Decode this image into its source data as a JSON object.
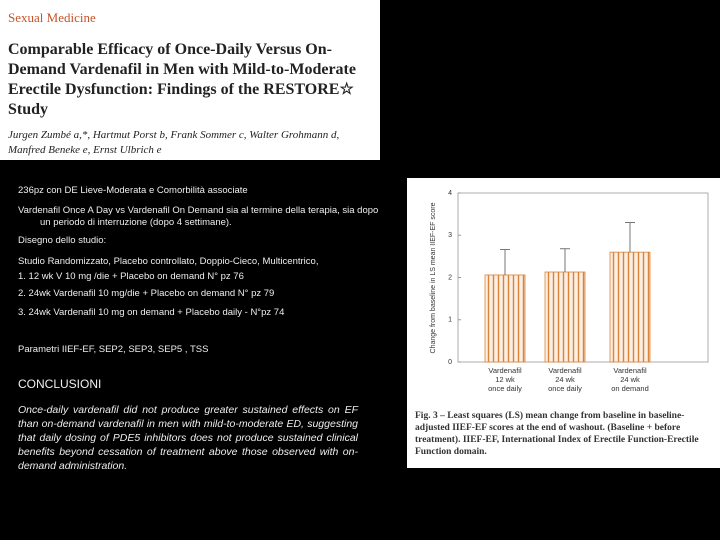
{
  "paper": {
    "journal": "Sexual Medicine",
    "title": "Comparable Efficacy of Once-Daily Versus On-Demand Vardenafil in Men with Mild-to-Moderate Erectile Dysfunction: Findings of the RESTORE☆ Study",
    "authors": "Jurgen Zumbé a,*, Hartmut Porst b, Frank Sommer c, Walter Grohmann d, Manfred Beneke e, Ernst Ulbrich e"
  },
  "slide": {
    "lines": [
      "236pz con DE Lieve-Moderata e Comorbilità associate",
      "Vardenafil Once A Day vs Vardenafil On Demand sia al termine della terapia, sia dopo un periodo di interruzione (dopo 4 settimane).",
      "Disegno dello studio:",
      "Studio Randomizzato, Placebo controllato, Doppio-Cieco, Multicentrico,",
      "1. 12 wk V 10 mg /die + Placebo on demand N° pz 76",
      "2. 24wk Vardenafil 10 mg/die + Placebo on demand N° pz 79",
      "3. 24wk Vardenafil 10 mg on demand + Placebo daily - N°pz 74",
      "Parametri IIEF-EF, SEP2, SEP3, SEP5 , TSS"
    ],
    "conclusion_heading": "CONCLUSIONI",
    "conclusion": "Once-daily vardenafil did not produce greater sustained effects on EF than on-demand vardenafil in men with mild-to-moderate ED, suggesting that daily dosing of PDE5 inhibitors does not produce sustained clinical benefits beyond cessation of treatment above those observed with on-demand administration."
  },
  "chart_data": {
    "type": "bar",
    "y_label": "Change from baseline in LS mean IIEF-EF score",
    "categories": [
      "Vardenafil\n12 wk\nonce daily",
      "Vardenafil\n24 wk\nonce daily",
      "Vardenafil\n24 wk\non demand"
    ],
    "values": [
      2.06,
      2.13,
      2.6
    ],
    "errors": [
      0.6,
      0.55,
      0.7
    ],
    "color": "#d9843a",
    "ylim": [
      0,
      4
    ],
    "yticks": [
      0,
      1,
      2,
      3,
      4
    ],
    "caption": "Fig. 3 – Least squares (LS) mean change from baseline in baseline-adjusted IIEF-EF scores at the end of washout. (Baseline + before treatment). IIEF-EF, International Index of Erectile Function-Erectile Function domain."
  }
}
